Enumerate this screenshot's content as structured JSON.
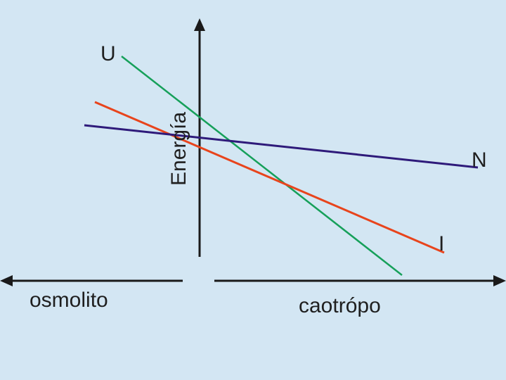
{
  "labels": {
    "energy_axis": "Energía",
    "left_arrow": "osmolito",
    "right_arrow": "caotrópo"
  },
  "lines": [
    {
      "id": "U",
      "label": "U",
      "color": "#16a05a"
    },
    {
      "id": "I",
      "label": "I",
      "color": "#e8441c"
    },
    {
      "id": "N",
      "label": "N",
      "color": "#2e1a7a"
    }
  ],
  "colors": {
    "background": "#d3e6f3",
    "axis": "#1a1a1a"
  }
}
